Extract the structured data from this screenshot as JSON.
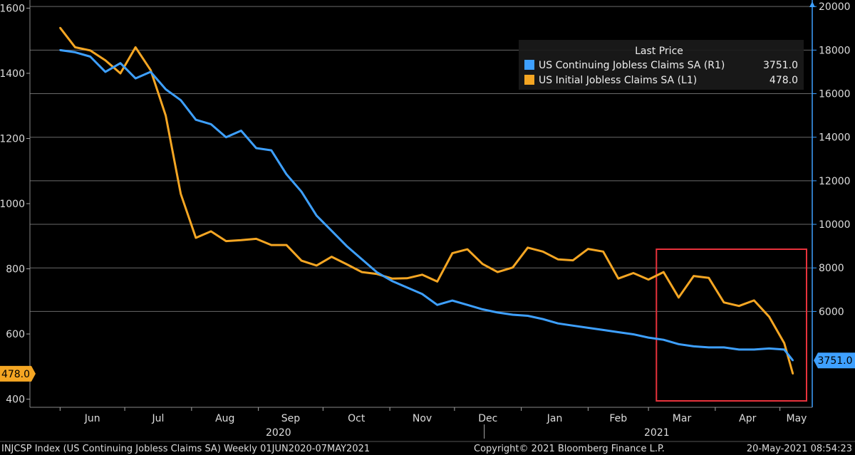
{
  "chart_data": {
    "type": "line",
    "legend": {
      "title": "Last Price",
      "placement": "top-right",
      "entries": [
        {
          "label": "US Continuing Jobless Claims SA  (R1)",
          "value": "3751.0",
          "color": "#3ea0ff"
        },
        {
          "label": "US Initial Jobless Claims SA  (L1)",
          "value": "478.0",
          "color": "#f5a623"
        }
      ]
    },
    "left_axis": {
      "ylim": [
        375,
        1625
      ],
      "ticks": [
        "1600",
        "1400",
        "1200",
        "1000",
        "800",
        "600",
        "400"
      ],
      "tick_values": [
        1600,
        1400,
        1200,
        1000,
        800,
        600,
        400
      ]
    },
    "right_axis": {
      "ylim": [
        1600,
        20300
      ],
      "ticks": [
        "20000",
        "18000",
        "16000",
        "14000",
        "12000",
        "10000",
        "8000",
        "6000"
      ],
      "tick_values": [
        20000,
        18000,
        16000,
        14000,
        12000,
        10000,
        8000,
        6000
      ]
    },
    "x_ticks": [
      "Jun",
      "Jul",
      "Aug",
      "Sep",
      "Oct",
      "Nov",
      "Dec",
      "Jan",
      "Feb",
      "Mar",
      "Apr",
      "May"
    ],
    "x_years": [
      "2020",
      "2021"
    ],
    "x": [
      "2020-06-01",
      "2020-06-08",
      "2020-06-15",
      "2020-06-22",
      "2020-06-29",
      "2020-07-06",
      "2020-07-13",
      "2020-07-20",
      "2020-07-27",
      "2020-08-03",
      "2020-08-10",
      "2020-08-17",
      "2020-08-24",
      "2020-08-31",
      "2020-09-07",
      "2020-09-14",
      "2020-09-21",
      "2020-09-28",
      "2020-10-05",
      "2020-10-12",
      "2020-10-19",
      "2020-10-26",
      "2020-11-02",
      "2020-11-09",
      "2020-11-16",
      "2020-11-23",
      "2020-11-30",
      "2020-12-07",
      "2020-12-14",
      "2020-12-21",
      "2020-12-28",
      "2021-01-04",
      "2021-01-11",
      "2021-01-18",
      "2021-01-25",
      "2021-02-01",
      "2021-02-08",
      "2021-02-15",
      "2021-02-22",
      "2021-03-01",
      "2021-03-08",
      "2021-03-15",
      "2021-03-22",
      "2021-03-29",
      "2021-04-05",
      "2021-04-12",
      "2021-04-19",
      "2021-04-26",
      "2021-05-03",
      "2021-05-07"
    ],
    "series": [
      {
        "name": "US Initial Jobless Claims SA",
        "axis": "left",
        "color": "#f5a623",
        "values": [
          1540,
          1480,
          1470,
          1440,
          1400,
          1480,
          1410,
          1270,
          1030,
          895,
          915,
          885,
          888,
          892,
          873,
          873,
          825,
          810,
          837,
          814,
          790,
          784,
          770,
          771,
          782,
          761,
          848,
          860,
          815,
          790,
          804,
          865,
          853,
          829,
          826,
          861,
          853,
          770,
          787,
          767,
          790,
          712,
          778,
          772,
          697,
          686,
          703,
          653,
          572,
          478
        ]
      },
      {
        "name": "US Continuing Jobless Claims SA",
        "axis": "right",
        "color": "#3ea0ff",
        "values": [
          18000,
          17900,
          17700,
          17000,
          17400,
          16700,
          17000,
          16200,
          15700,
          14800,
          14600,
          14000,
          14300,
          13500,
          13400,
          12300,
          11500,
          10400,
          9700,
          9000,
          8400,
          7800,
          7400,
          7100,
          6800,
          6300,
          6500,
          6300,
          6100,
          5950,
          5850,
          5800,
          5650,
          5450,
          5350,
          5250,
          5150,
          5050,
          4950,
          4800,
          4700,
          4500,
          4400,
          4350,
          4350,
          4250,
          4250,
          4300,
          4250,
          3751
        ]
      }
    ],
    "last_value_tags": {
      "left": "478.0",
      "right": "3751.0"
    },
    "highlight_box": {
      "from": "2021-03-08",
      "to": "2021-05-07",
      "color": "#e8323c"
    },
    "grid": true
  },
  "footer": {
    "left": "INJCSP Index (US Continuing Jobless Claims SA)  Weekly 01JUN2020-07MAY2021",
    "center": "Copyright© 2021 Bloomberg Finance L.P.",
    "right": "20-May-2021 08:54:23"
  }
}
